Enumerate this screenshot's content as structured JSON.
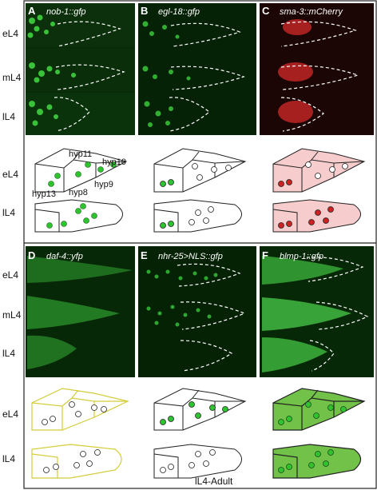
{
  "panels": {
    "A": {
      "letter": "A",
      "gene": "nob-1::gfp"
    },
    "B": {
      "letter": "B",
      "gene": "egl-18::gfp"
    },
    "C": {
      "letter": "C",
      "gene": "sma-3::mCherry"
    },
    "D": {
      "letter": "D",
      "gene": "daf-4::yfp"
    },
    "E": {
      "letter": "E",
      "gene": "nhr-25>NLS::gfp"
    },
    "F": {
      "letter": "F",
      "gene": "blmp-1::gfp"
    }
  },
  "stages": {
    "top": [
      "eL4",
      "mL4",
      "lL4"
    ],
    "bottom": [
      "eL4",
      "mL4",
      "lL4"
    ]
  },
  "schematic_stages": {
    "top": [
      "eL4",
      "lL4"
    ],
    "bottom": [
      "eL4",
      "lL4"
    ]
  },
  "hyp_labels": [
    "hyp11",
    "hyp10",
    "hyp9",
    "hyp8",
    "hyp13"
  ],
  "note": "lL4-Adult",
  "colors": {
    "gfp": "#2fc42f",
    "red": "#cc2222",
    "pink": "#f6cccc",
    "yellow": "#d4cc3a",
    "blmp": "#72c24a"
  }
}
